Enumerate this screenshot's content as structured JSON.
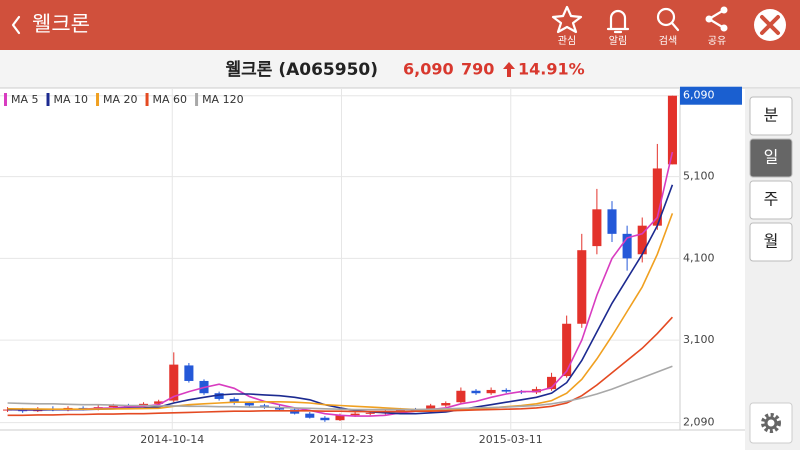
{
  "header": {
    "title": "웰크론",
    "actions": [
      "관심",
      "알림",
      "검색",
      "공유"
    ]
  },
  "quote": {
    "name": "웰크론 (A065950)",
    "price": "6,090",
    "change": "790",
    "rate": "14.91%"
  },
  "periods": [
    "분",
    "일",
    "주",
    "월"
  ],
  "chart_data": {
    "type": "candlestick",
    "xlim": [
      -0.5,
      44.5
    ],
    "xticks": [
      {
        "value": 10.9,
        "label": "2014-10-14"
      },
      {
        "value": 22.1,
        "label": "2014-12-23"
      },
      {
        "value": 33.3,
        "label": "2015-03-11"
      }
    ],
    "ylim": [
      2000,
      6160
    ],
    "yticks": [
      {
        "value": 2090,
        "label": "2,090"
      },
      {
        "value": 3100,
        "label": "3,100"
      },
      {
        "value": 4100,
        "label": "4,100"
      },
      {
        "value": 5100,
        "label": "5,100"
      },
      {
        "value": 6090,
        "label": "6,090"
      }
    ],
    "grid": true,
    "up_color": "#e3322b",
    "down_color": "#2458d8",
    "open": [
      2240,
      2250,
      2230,
      2260,
      2240,
      2270,
      2250,
      2280,
      2300,
      2290,
      2320,
      2360,
      2790,
      2600,
      2450,
      2380,
      2330,
      2300,
      2280,
      2250,
      2200,
      2150,
      2120,
      2180,
      2200,
      2210,
      2230,
      2250,
      2240,
      2300,
      2340,
      2480,
      2450,
      2490,
      2470,
      2460,
      2500,
      2660,
      3300,
      4250,
      4700,
      4400,
      4150,
      4500,
      5250
    ],
    "high": [
      2280,
      2270,
      2280,
      2290,
      2290,
      2290,
      2300,
      2320,
      2320,
      2340,
      2370,
      2950,
      2820,
      2620,
      2470,
      2400,
      2350,
      2320,
      2300,
      2270,
      2220,
      2170,
      2200,
      2220,
      2230,
      2250,
      2270,
      2270,
      2320,
      2350,
      2520,
      2500,
      2520,
      2510,
      2490,
      2530,
      2700,
      3400,
      4400,
      4950,
      4800,
      4500,
      4600,
      5500,
      6090
    ],
    "low": [
      2220,
      2210,
      2220,
      2230,
      2230,
      2240,
      2240,
      2270,
      2270,
      2280,
      2310,
      2340,
      2580,
      2430,
      2360,
      2310,
      2280,
      2260,
      2240,
      2190,
      2140,
      2100,
      2110,
      2160,
      2180,
      2190,
      2210,
      2220,
      2220,
      2280,
      2320,
      2430,
      2430,
      2450,
      2440,
      2440,
      2480,
      2640,
      3250,
      4150,
      4300,
      3950,
      4050,
      4450,
      5250
    ],
    "close": [
      2250,
      2230,
      2260,
      2240,
      2270,
      2250,
      2280,
      2300,
      2290,
      2320,
      2350,
      2800,
      2600,
      2450,
      2380,
      2330,
      2300,
      2280,
      2250,
      2200,
      2150,
      2120,
      2180,
      2200,
      2210,
      2230,
      2250,
      2240,
      2300,
      2330,
      2480,
      2450,
      2490,
      2470,
      2460,
      2500,
      2650,
      3300,
      4200,
      4700,
      4400,
      4100,
      4500,
      5200,
      6090
    ],
    "series": [
      {
        "name": "MA 5",
        "color": "#d83cc0",
        "values": [
          2250,
          2245,
          2245,
          2250,
          2250,
          2255,
          2265,
          2270,
          2285,
          2290,
          2310,
          2410,
          2470,
          2520,
          2560,
          2510,
          2410,
          2350,
          2310,
          2270,
          2240,
          2200,
          2180,
          2170,
          2170,
          2180,
          2210,
          2230,
          2250,
          2270,
          2320,
          2350,
          2400,
          2440,
          2470,
          2470,
          2520,
          2720,
          3100,
          3650,
          4100,
          4350,
          4400,
          4600,
          5400
        ]
      },
      {
        "name": "MA 10",
        "color": "#1c2a90",
        "values": [
          2250,
          2248,
          2247,
          2248,
          2249,
          2250,
          2255,
          2260,
          2265,
          2270,
          2280,
          2330,
          2370,
          2400,
          2430,
          2440,
          2440,
          2430,
          2420,
          2400,
          2370,
          2310,
          2270,
          2240,
          2220,
          2210,
          2200,
          2200,
          2210,
          2220,
          2250,
          2280,
          2310,
          2340,
          2370,
          2400,
          2450,
          2580,
          2850,
          3200,
          3550,
          3850,
          4150,
          4500,
          5000
        ]
      },
      {
        "name": "MA 20",
        "color": "#f0a020",
        "values": [
          2260,
          2258,
          2256,
          2255,
          2255,
          2255,
          2256,
          2258,
          2260,
          2262,
          2265,
          2290,
          2310,
          2320,
          2330,
          2340,
          2340,
          2345,
          2345,
          2340,
          2330,
          2310,
          2300,
          2290,
          2280,
          2270,
          2260,
          2250,
          2245,
          2240,
          2250,
          2260,
          2270,
          2285,
          2300,
          2320,
          2360,
          2450,
          2620,
          2870,
          3150,
          3450,
          3750,
          4150,
          4650
        ]
      },
      {
        "name": "MA 60",
        "color": "#e44a22",
        "values": [
          2180,
          2180,
          2185,
          2185,
          2190,
          2190,
          2195,
          2195,
          2200,
          2200,
          2205,
          2210,
          2215,
          2220,
          2225,
          2230,
          2230,
          2235,
          2235,
          2235,
          2235,
          2230,
          2230,
          2225,
          2225,
          2225,
          2225,
          2230,
          2230,
          2235,
          2240,
          2245,
          2250,
          2255,
          2260,
          2270,
          2290,
          2330,
          2420,
          2550,
          2700,
          2850,
          3000,
          3180,
          3380
        ]
      },
      {
        "name": "MA 120",
        "color": "#a8a8a8",
        "values": [
          2330,
          2325,
          2320,
          2320,
          2315,
          2310,
          2310,
          2305,
          2300,
          2300,
          2295,
          2295,
          2290,
          2290,
          2285,
          2285,
          2280,
          2280,
          2275,
          2270,
          2265,
          2260,
          2255,
          2250,
          2250,
          2250,
          2250,
          2250,
          2255,
          2260,
          2265,
          2270,
          2275,
          2280,
          2290,
          2300,
          2320,
          2350,
          2390,
          2440,
          2500,
          2570,
          2640,
          2710,
          2780
        ]
      }
    ]
  }
}
